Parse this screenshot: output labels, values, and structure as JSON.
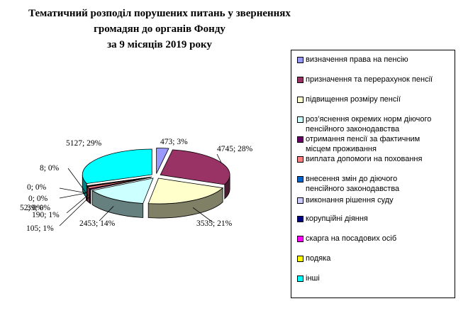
{
  "title_lines": [
    "Тематичний розподіл порушених питань у зверненнях",
    "громадян до органів Фонду",
    "за 9 місяців 2019 року"
  ],
  "chart_data": {
    "type": "pie",
    "title": "Тематичний розподіл порушених питань у зверненнях громадян до органів Фонду за 9 місяців 2019 року",
    "style": "3d-exploded",
    "legend_position": "right",
    "slices": [
      {
        "label": "визначення права на пенсію",
        "value": 473,
        "percent": 3,
        "data_label": "473; 3%",
        "color": "#9999FF"
      },
      {
        "label": "призначення та перерахунок пенсії",
        "value": 4745,
        "percent": 28,
        "data_label": "4745; 28%",
        "color": "#993366"
      },
      {
        "label": "підвищення розміру пенсії",
        "value": 3535,
        "percent": 21,
        "data_label": "3535; 21%",
        "color": "#FFFFCC"
      },
      {
        "label": "роз’яснення окремих норм діючого пенсійного законодавства",
        "value": 2453,
        "percent": 14,
        "data_label": "2453; 14%",
        "color": "#CCFFFF"
      },
      {
        "label": "отримання пенсії за фактичним місцем проживання",
        "value": 105,
        "percent": 1,
        "data_label": "105; 1%",
        "color": "#660066"
      },
      {
        "label": "виплата допомоги на поховання",
        "value": 190,
        "percent": 1,
        "data_label": "190; 1%",
        "color": "#FF8080"
      },
      {
        "label": "внесення змін до діючого пенсійного законодавства",
        "value": 52,
        "percent": 0,
        "data_label": "52; 0%",
        "color": "#0066CC"
      },
      {
        "label": "виконання рішення суду",
        "value": 39,
        "percent": 0,
        "data_label": "39; 0%",
        "color": "#CCCCFF"
      },
      {
        "label": "корупційні діяння",
        "value": 0,
        "percent": 0,
        "data_label": "0; 0%",
        "color": "#000080"
      },
      {
        "label": "скарга на посадових осіб",
        "value": 0,
        "percent": 0,
        "data_label": "0; 0%",
        "color": "#FF00FF"
      },
      {
        "label": "подяка",
        "value": 8,
        "percent": 0,
        "data_label": "8; 0%",
        "color": "#FFFF00"
      },
      {
        "label": "інші",
        "value": 5127,
        "percent": 29,
        "data_label": "5127; 29%",
        "color": "#00FFFF"
      }
    ]
  },
  "legend_lines": [
    [
      "визначення права на пенсію"
    ],
    [
      "призначення та перерахунок пенсії"
    ],
    [
      "підвищення розміру пенсії"
    ],
    [
      "роз’яснення окремих норм діючого",
      "пенсійного законодавства"
    ],
    [
      "отримання пенсії за фактичним",
      "місцем проживання"
    ],
    [
      "виплата допомоги на поховання"
    ],
    [
      "внесення змін до діючого",
      "пенсійного законодавства"
    ],
    [
      "виконання рішення суду"
    ],
    [
      "корупційні діяння"
    ],
    [
      "скарга на посадових осіб"
    ],
    [
      "подяка"
    ],
    [
      "інші"
    ]
  ]
}
